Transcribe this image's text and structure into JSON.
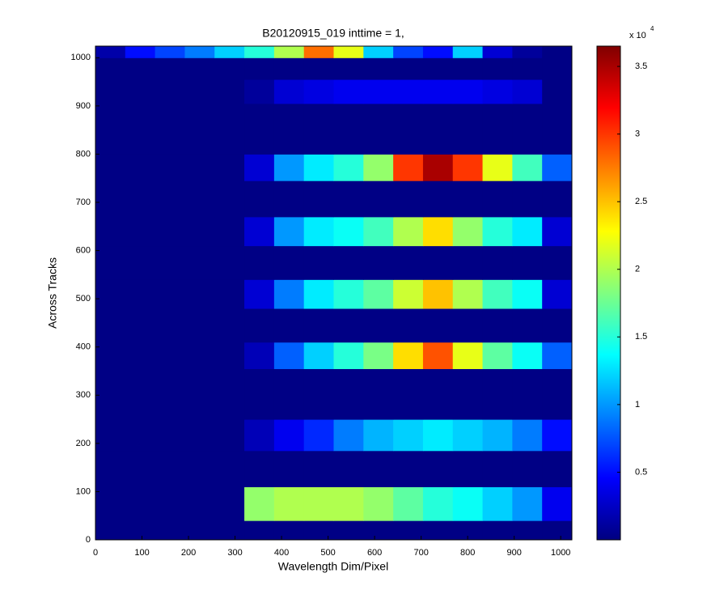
{
  "chart_data": {
    "type": "heatmap",
    "title": "B20120915_019 inttime = 1,",
    "xlabel": "Wavelength Dim/Pixel",
    "ylabel": "Across Tracks",
    "xlim": [
      0,
      1024
    ],
    "ylim": [
      0,
      1024
    ],
    "xticks": [
      0,
      100,
      200,
      300,
      400,
      500,
      600,
      700,
      800,
      900,
      1000
    ],
    "yticks": [
      0,
      100,
      200,
      300,
      400,
      500,
      600,
      700,
      800,
      900,
      1000
    ],
    "x_edges": [
      0,
      64,
      128,
      192,
      256,
      320,
      384,
      448,
      512,
      576,
      640,
      704,
      768,
      832,
      896,
      960,
      1024
    ],
    "y_edges": [
      0,
      40,
      110,
      185,
      250,
      355,
      410,
      480,
      540,
      610,
      670,
      745,
      800,
      905,
      955,
      1000,
      1024
    ],
    "z": [
      [
        200,
        200,
        200,
        200,
        200,
        200,
        200,
        200,
        200,
        200,
        200,
        200,
        200,
        200,
        200,
        200
      ],
      [
        200,
        200,
        200,
        200,
        200,
        19000,
        20000,
        20000,
        20000,
        19000,
        17000,
        15000,
        14000,
        12000,
        10000,
        4000
      ],
      [
        200,
        200,
        200,
        200,
        200,
        200,
        200,
        200,
        200,
        200,
        200,
        200,
        200,
        200,
        200,
        200
      ],
      [
        200,
        200,
        200,
        200,
        200,
        2000,
        4000,
        6000,
        9000,
        11000,
        12000,
        13000,
        12000,
        11000,
        9000,
        5000
      ],
      [
        200,
        200,
        200,
        200,
        200,
        200,
        200,
        200,
        200,
        200,
        200,
        200,
        200,
        200,
        200,
        200
      ],
      [
        200,
        200,
        200,
        200,
        200,
        2000,
        8000,
        12000,
        15000,
        18000,
        24000,
        29000,
        22000,
        17000,
        14000,
        8000
      ],
      [
        200,
        200,
        200,
        200,
        200,
        200,
        200,
        200,
        200,
        200,
        200,
        200,
        200,
        200,
        200,
        200
      ],
      [
        200,
        200,
        200,
        200,
        200,
        3000,
        9000,
        13000,
        15000,
        17000,
        21000,
        25000,
        20000,
        16000,
        14000,
        3000
      ],
      [
        200,
        200,
        200,
        200,
        200,
        200,
        200,
        200,
        200,
        200,
        200,
        200,
        200,
        200,
        200,
        200
      ],
      [
        200,
        200,
        200,
        200,
        200,
        3000,
        10000,
        13000,
        14000,
        16000,
        20000,
        24000,
        19000,
        15000,
        13000,
        3000
      ],
      [
        200,
        200,
        200,
        200,
        200,
        200,
        200,
        200,
        200,
        200,
        200,
        200,
        200,
        200,
        200,
        200
      ],
      [
        200,
        200,
        200,
        200,
        200,
        3000,
        10000,
        13000,
        15000,
        19000,
        30000,
        35000,
        30000,
        22000,
        16000,
        8000
      ],
      [
        200,
        200,
        200,
        200,
        200,
        200,
        200,
        200,
        200,
        200,
        200,
        200,
        200,
        200,
        200,
        200
      ],
      [
        200,
        200,
        200,
        200,
        200,
        1000,
        3000,
        3500,
        4000,
        4000,
        4000,
        4000,
        4000,
        3500,
        3000,
        200
      ],
      [
        200,
        200,
        200,
        200,
        200,
        200,
        200,
        200,
        200,
        200,
        200,
        200,
        200,
        200,
        200,
        200
      ],
      [
        1500,
        5000,
        7000,
        9000,
        12000,
        15000,
        20000,
        28000,
        22000,
        12000,
        7000,
        5000,
        12000,
        3000,
        1000,
        200
      ]
    ],
    "colorbar": {
      "clim": [
        0,
        36500
      ],
      "multiplier": "x 10",
      "exponent": "4",
      "ticks": [
        {
          "value": 5000,
          "label": "0.5"
        },
        {
          "value": 10000,
          "label": "1"
        },
        {
          "value": 15000,
          "label": "1.5"
        },
        {
          "value": 20000,
          "label": "2"
        },
        {
          "value": 25000,
          "label": "2.5"
        },
        {
          "value": 30000,
          "label": "3"
        },
        {
          "value": 35000,
          "label": "3.5"
        }
      ]
    },
    "colormap": "jet"
  }
}
